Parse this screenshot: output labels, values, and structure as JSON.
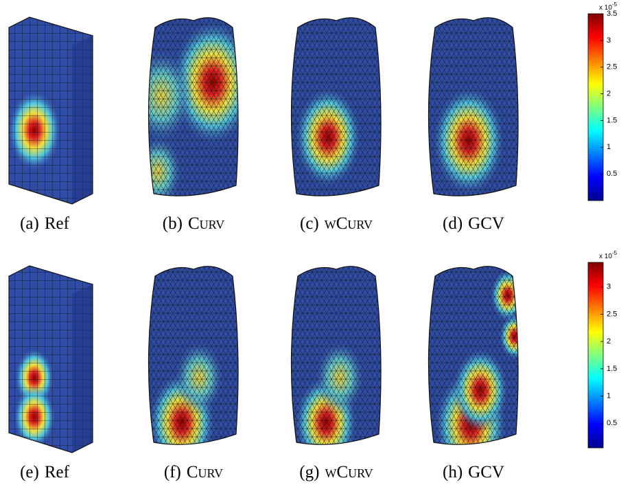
{
  "figure": {
    "rows": [
      {
        "panels": [
          {
            "label": "(a)",
            "name": "Ref"
          },
          {
            "label": "(b)",
            "name": "Curv"
          },
          {
            "label": "(c)",
            "name": "wCurv"
          },
          {
            "label": "(d)",
            "name": "GCV"
          }
        ],
        "colorbar": {
          "base": "x 10",
          "exponent": "-5",
          "lim": [
            0,
            3.5
          ],
          "ticks": [
            0.5,
            1,
            1.5,
            2,
            2.5,
            3,
            3.5
          ]
        }
      },
      {
        "panels": [
          {
            "label": "(e)",
            "name": "Ref"
          },
          {
            "label": "(f)",
            "name": "Curv"
          },
          {
            "label": "(g)",
            "name": "wCurv"
          },
          {
            "label": "(h)",
            "name": "GCV"
          }
        ],
        "colorbar": {
          "base": "x 10",
          "exponent": "-5",
          "lim": [
            0.05,
            3.45
          ],
          "ticks": [
            0.5,
            1,
            1.5,
            2,
            2.5,
            3
          ]
        }
      }
    ]
  }
}
